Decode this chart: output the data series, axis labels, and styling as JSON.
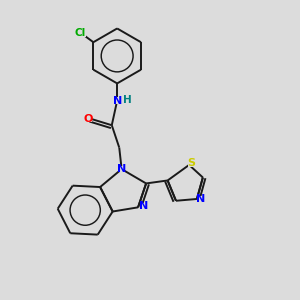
{
  "background_color": "#dcdcdc",
  "bond_color": "#1a1a1a",
  "atom_colors": {
    "N": "#0000ff",
    "O": "#ff0000",
    "S": "#cccc00",
    "Cl": "#00aa00",
    "H": "#008080"
  },
  "figsize": [
    3.0,
    3.0
  ],
  "dpi": 100,
  "bond_lw": 1.4,
  "font_size": 7.5
}
